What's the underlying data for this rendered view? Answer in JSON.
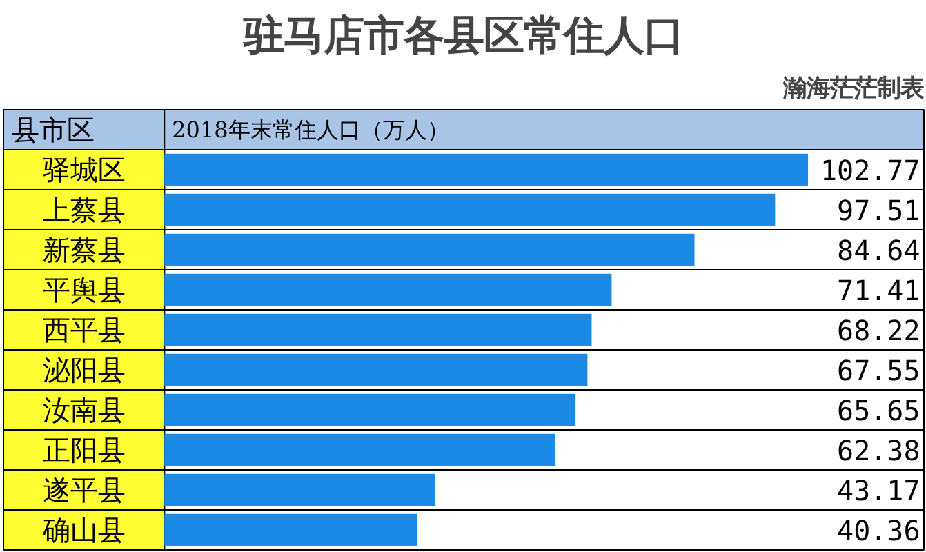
{
  "chart_data": {
    "type": "bar",
    "orientation": "horizontal",
    "title": "驻马店市各县区常住人口",
    "annotations": [
      "瀚海茫茫制表"
    ],
    "ylabel": "县市区",
    "xlabel": "2018年末常住人口（万人）",
    "categories": [
      "驿城区",
      "上蔡县",
      "新蔡县",
      "平舆县",
      "西平县",
      "泌阳县",
      "汝南县",
      "正阳县",
      "遂平县",
      "确山县"
    ],
    "values": [
      102.77,
      97.51,
      84.64,
      71.41,
      68.22,
      67.55,
      65.65,
      62.38,
      43.17,
      40.36
    ],
    "color": "#1a8ae6",
    "data_labels": true,
    "tick_labels": false,
    "grid": false
  }
}
